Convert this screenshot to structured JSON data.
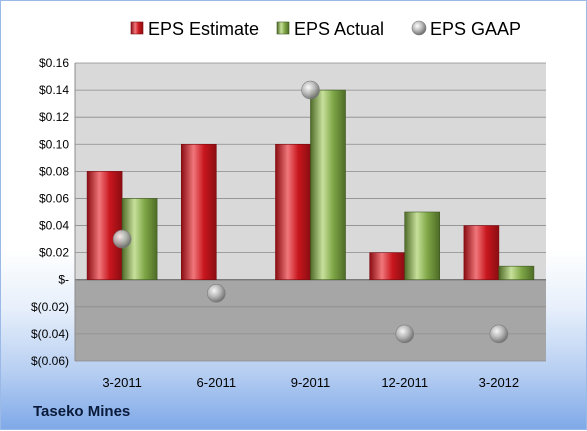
{
  "company_label": "Taseko Mines",
  "colors": {
    "estimate": "#c8161d",
    "actual": "#7ea646",
    "gaap": "#b7b7b7",
    "plot_positive": "#d9d9d9",
    "plot_negative": "#a6a6a6"
  },
  "chart_data": {
    "type": "bar",
    "categories": [
      "3-2011",
      "6-2011",
      "9-2011",
      "12-2011",
      "3-2012"
    ],
    "series": [
      {
        "name": "EPS Estimate",
        "kind": "bar",
        "values": [
          0.08,
          0.1,
          0.1,
          0.02,
          0.04
        ]
      },
      {
        "name": "EPS Actual",
        "kind": "bar",
        "values": [
          0.06,
          null,
          0.14,
          0.05,
          0.01
        ]
      },
      {
        "name": "EPS GAAP",
        "kind": "marker",
        "values": [
          0.03,
          -0.01,
          0.14,
          -0.04,
          -0.04
        ]
      }
    ],
    "yticks": [
      "$0.16",
      "$0.14",
      "$0.12",
      "$0.10",
      "$0.08",
      "$0.06",
      "$0.04",
      "$0.02",
      "$-",
      "$(0.02)",
      "$(0.04)",
      "$(0.06)"
    ],
    "ylim": [
      -0.06,
      0.16
    ],
    "legend_position": "top",
    "grid": true
  }
}
